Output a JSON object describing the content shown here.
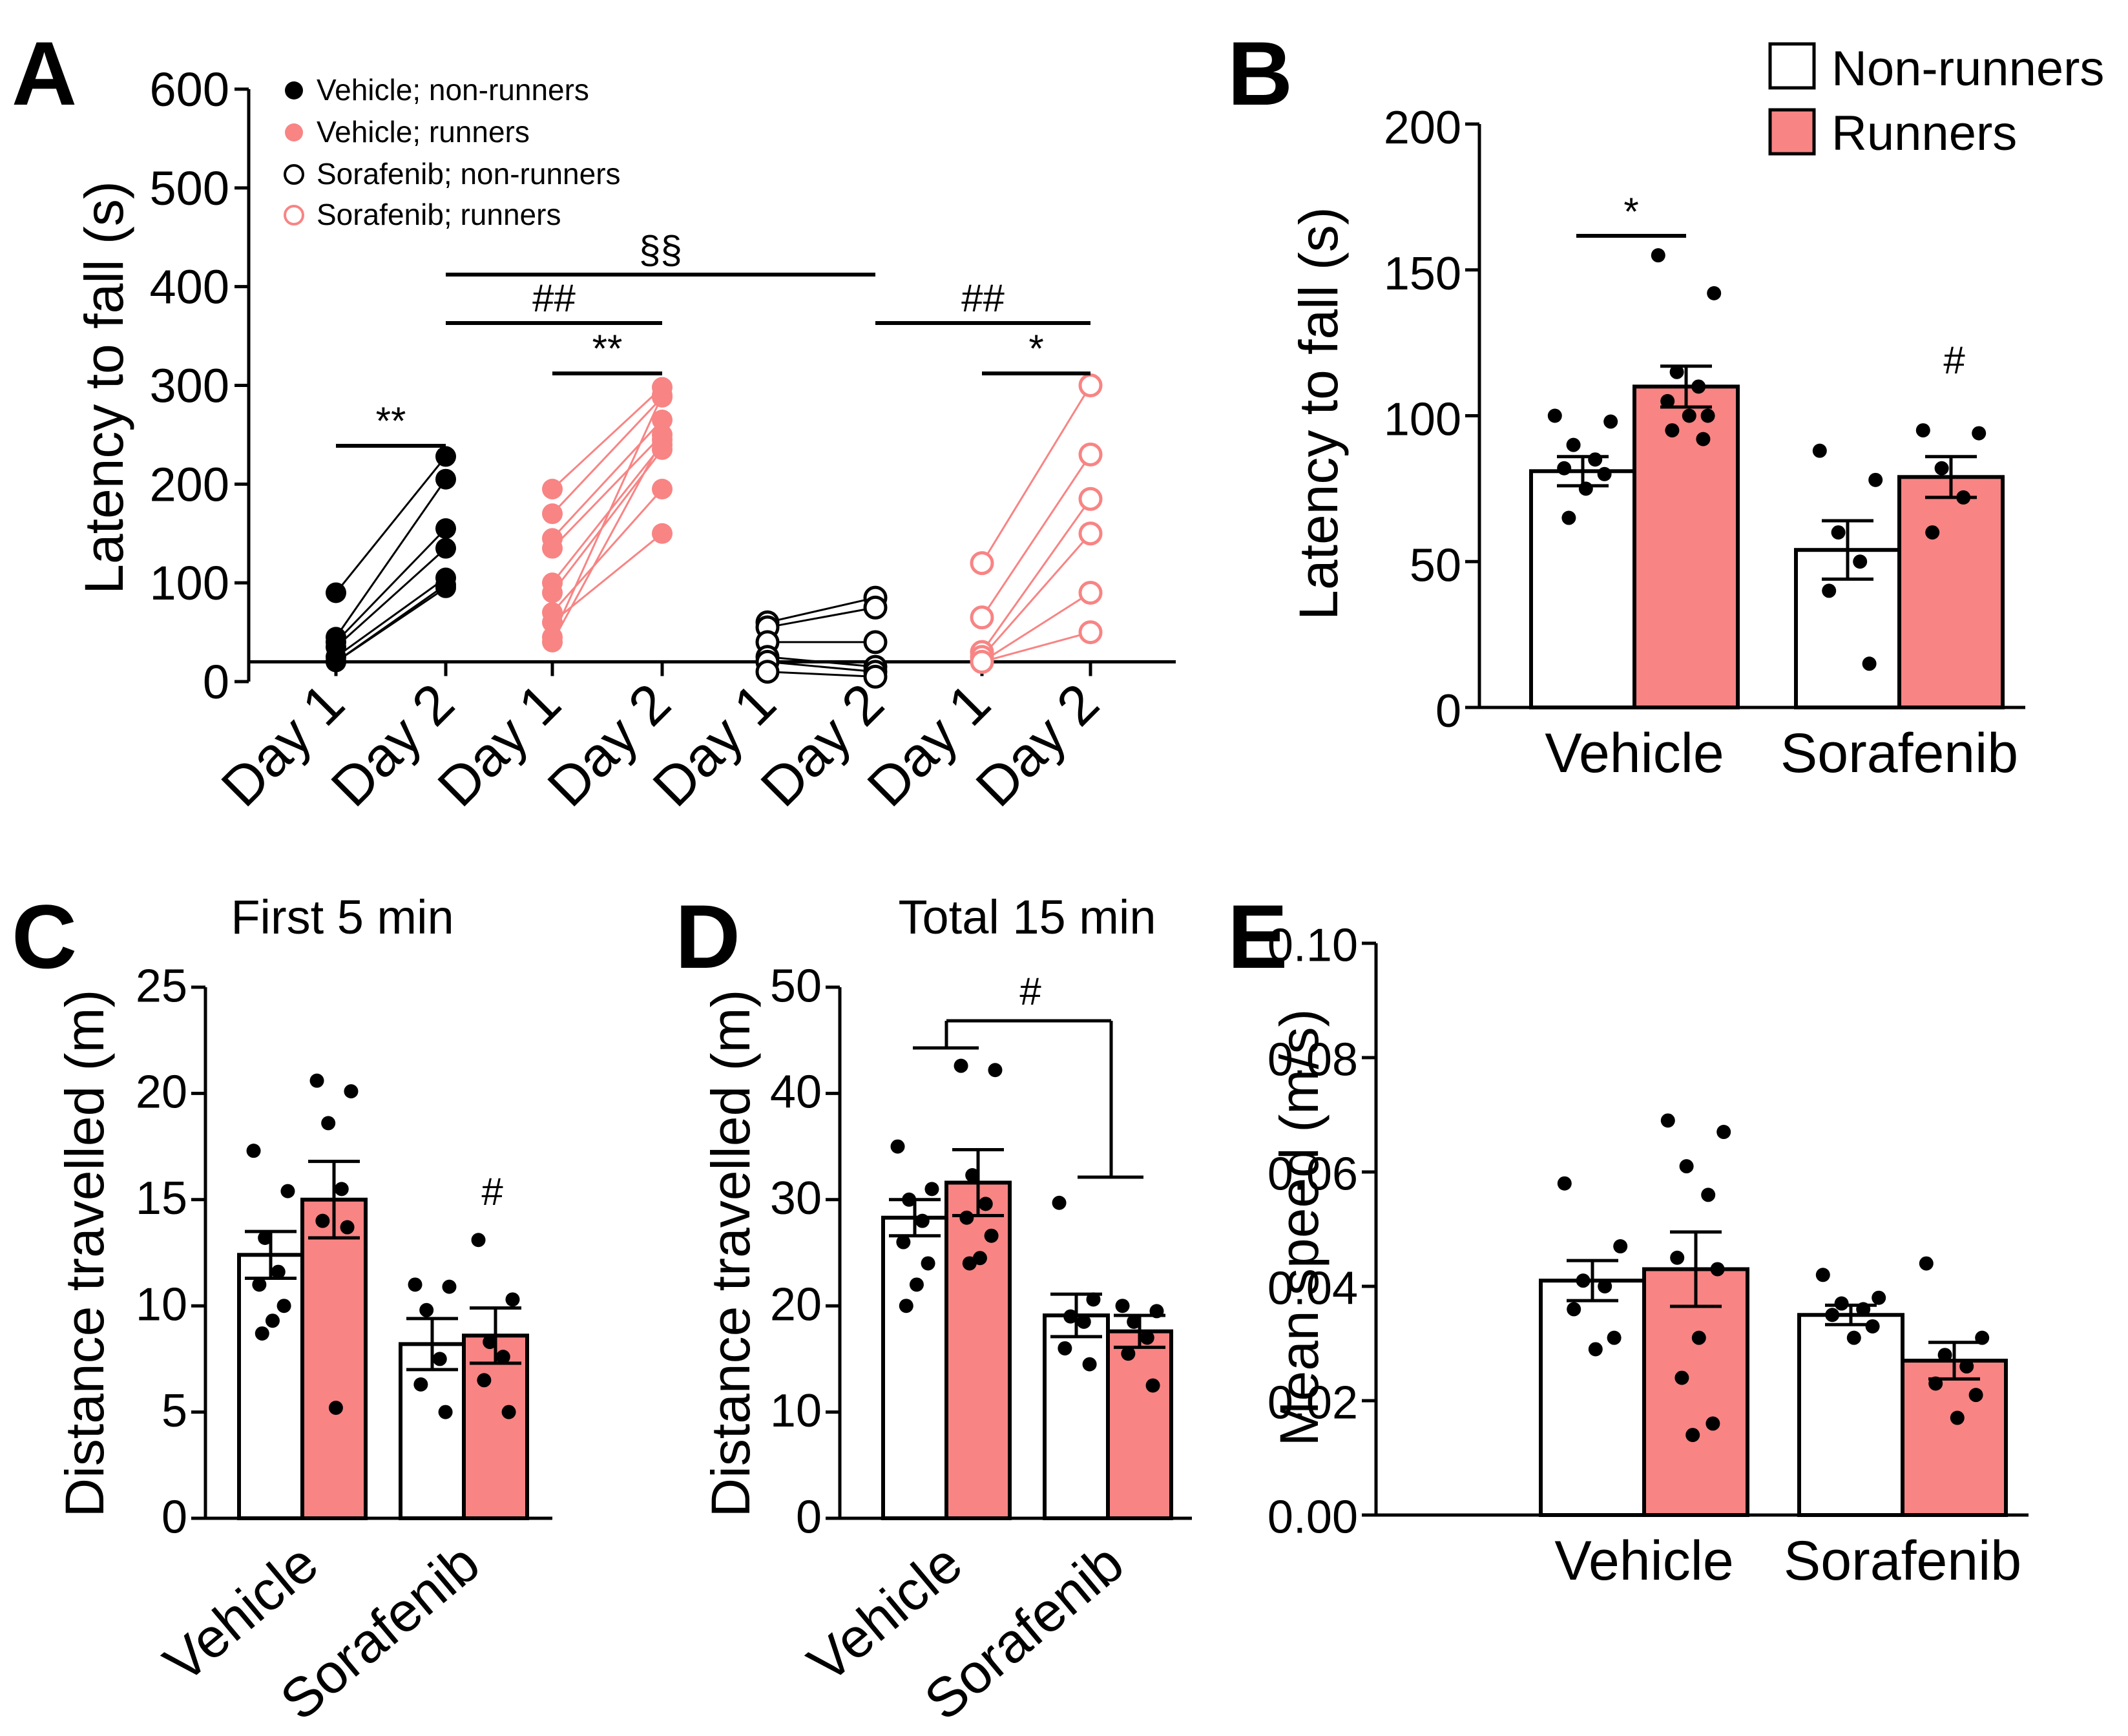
{
  "colors": {
    "runner": "#F88484",
    "nonrunner": "#FFFFFF",
    "ink": "#000000"
  },
  "chart_data": [
    {
      "panel": "A",
      "type": "scatter",
      "title": "",
      "xlabel": "",
      "ylabel": "Latency to fall (s)",
      "ylim": [
        0,
        600
      ],
      "yticks": [
        "0",
        "100",
        "200",
        "300",
        "400",
        "500",
        "600"
      ],
      "categories": [
        "Day 1",
        "Day 2",
        "Day 1",
        "Day 2",
        "Day 1",
        "Day 2",
        "Day 1",
        "Day 2"
      ],
      "legend": [
        "Vehicle; non-runners",
        "Vehicle; runners",
        "Sorafenib; non-runners",
        "Sorafenib; runners"
      ],
      "series": [
        {
          "name": "Vehicle; non-runners",
          "style": "filled-black",
          "day1": [
            90,
            45,
            40,
            35,
            25,
            20,
            20
          ],
          "day2": [
            228,
            205,
            155,
            135,
            105,
            98,
            95
          ]
        },
        {
          "name": "Vehicle; runners",
          "style": "filled-pink",
          "day1": [
            195,
            170,
            145,
            135,
            100,
            90,
            70,
            60,
            45,
            40
          ],
          "day2": [
            298,
            288,
            265,
            250,
            240,
            235,
            195,
            150,
            290,
            245
          ]
        },
        {
          "name": "Sorafenib; non-runners",
          "style": "open-black",
          "day1": [
            60,
            55,
            40,
            25,
            20,
            10
          ],
          "day2": [
            85,
            75,
            40,
            15,
            10,
            5
          ]
        },
        {
          "name": "Sorafenib; runners",
          "style": "open-pink",
          "day1": [
            120,
            65,
            30,
            25,
            20,
            20
          ],
          "day2": [
            300,
            230,
            185,
            150,
            90,
            50
          ]
        }
      ],
      "annotations": [
        "**",
        "**",
        "*",
        "##",
        "##",
        "§§"
      ]
    },
    {
      "panel": "B",
      "type": "bar",
      "xlabel": "",
      "ylabel": "Latency to fall (s)",
      "ylim": [
        0,
        200
      ],
      "yticks": [
        "0",
        "50",
        "100",
        "150",
        "200"
      ],
      "categories": [
        "Vehicle",
        "Sorafenib"
      ],
      "legend": [
        "Non-runners",
        "Runners"
      ],
      "series": [
        {
          "name": "Non-runners",
          "values": [
            81,
            54
          ],
          "sem": [
            5,
            10
          ],
          "points": [
            [
              100,
              98,
              90,
              85,
              82,
              80,
              75,
              65
            ],
            [
              88,
              78,
              60,
              50,
              40,
              15
            ]
          ]
        },
        {
          "name": "Runners",
          "values": [
            110,
            79
          ],
          "sem": [
            7,
            7
          ],
          "points": [
            [
              155,
              142,
              115,
              110,
              105,
              100,
              100,
              95,
              92
            ],
            [
              95,
              94,
              82,
              72,
              60
            ]
          ]
        }
      ],
      "annotations": [
        "*",
        "#"
      ]
    },
    {
      "panel": "C",
      "type": "bar",
      "title": "First 5 min",
      "xlabel": "",
      "ylabel": "Distance travelled (m)",
      "ylim": [
        0,
        25
      ],
      "yticks": [
        "0",
        "5",
        "10",
        "15",
        "20",
        "25"
      ],
      "categories": [
        "Vehicle",
        "Sorafenib"
      ],
      "series": [
        {
          "name": "Non-runners",
          "values": [
            12.4,
            8.2
          ],
          "sem": [
            1.1,
            1.2
          ],
          "points": [
            [
              17.3,
              15.4,
              13.2,
              11.6,
              11.0,
              10.0,
              9.3,
              8.7
            ],
            [
              11.0,
              10.9,
              9.8,
              7.5,
              6.3,
              5.0
            ]
          ]
        },
        {
          "name": "Runners",
          "values": [
            15.0,
            8.6
          ],
          "sem": [
            1.8,
            1.3
          ],
          "points": [
            [
              20.6,
              20.1,
              18.6,
              15.5,
              14.0,
              13.7,
              5.2
            ],
            [
              13.1,
              10.3,
              8.3,
              7.6,
              6.5,
              5.0
            ]
          ]
        }
      ],
      "annotations": [
        "#"
      ]
    },
    {
      "panel": "D",
      "type": "bar",
      "title": "Total 15 min",
      "xlabel": "",
      "ylabel": "Distance travelled (m)",
      "ylim": [
        0,
        50
      ],
      "yticks": [
        "0",
        "10",
        "20",
        "30",
        "40",
        "50"
      ],
      "categories": [
        "Vehicle",
        "Sorafenib"
      ],
      "series": [
        {
          "name": "Non-runners",
          "values": [
            28.3,
            19.1
          ],
          "sem": [
            1.7,
            2.0
          ],
          "points": [
            [
              35.0,
              31.0,
              30.0,
              28.0,
              26.0,
              24.0,
              22.0,
              20.0
            ],
            [
              29.7,
              20.6,
              19.0,
              18.5,
              16.0,
              14.5
            ]
          ]
        },
        {
          "name": "Runners",
          "values": [
            31.6,
            17.6
          ],
          "sem": [
            3.1,
            1.5
          ],
          "points": [
            [
              42.6,
              42.2,
              32.3,
              29.6,
              28.3,
              26.6,
              24.5,
              24.0
            ],
            [
              20.0,
              19.5,
              18.5,
              17.0,
              15.5,
              12.5
            ]
          ]
        }
      ],
      "annotations": [
        "#"
      ]
    },
    {
      "panel": "E",
      "type": "bar",
      "xlabel": "",
      "ylabel": "Mean speed (m/s)",
      "ylim": [
        0,
        0.1
      ],
      "yticks": [
        "0.00",
        "0.02",
        "0.04",
        "0.06",
        "0.08",
        "0.10"
      ],
      "categories": [
        "Vehicle",
        "Sorafenib"
      ],
      "series": [
        {
          "name": "Non-runners",
          "values": [
            0.041,
            0.035
          ],
          "sem": [
            0.0035,
            0.0017
          ],
          "points": [
            [
              0.058,
              0.047,
              0.041,
              0.04,
              0.036,
              0.031,
              0.029
            ],
            [
              0.042,
              0.038,
              0.037,
              0.036,
              0.035,
              0.033,
              0.031
            ]
          ]
        },
        {
          "name": "Runners",
          "values": [
            0.043,
            0.027
          ],
          "sem": [
            0.0065,
            0.0032
          ],
          "points": [
            [
              0.069,
              0.067,
              0.061,
              0.056,
              0.045,
              0.043,
              0.031,
              0.024,
              0.016,
              0.014
            ],
            [
              0.044,
              0.031,
              0.028,
              0.026,
              0.023,
              0.021,
              0.017
            ]
          ]
        }
      ],
      "annotations": []
    }
  ]
}
